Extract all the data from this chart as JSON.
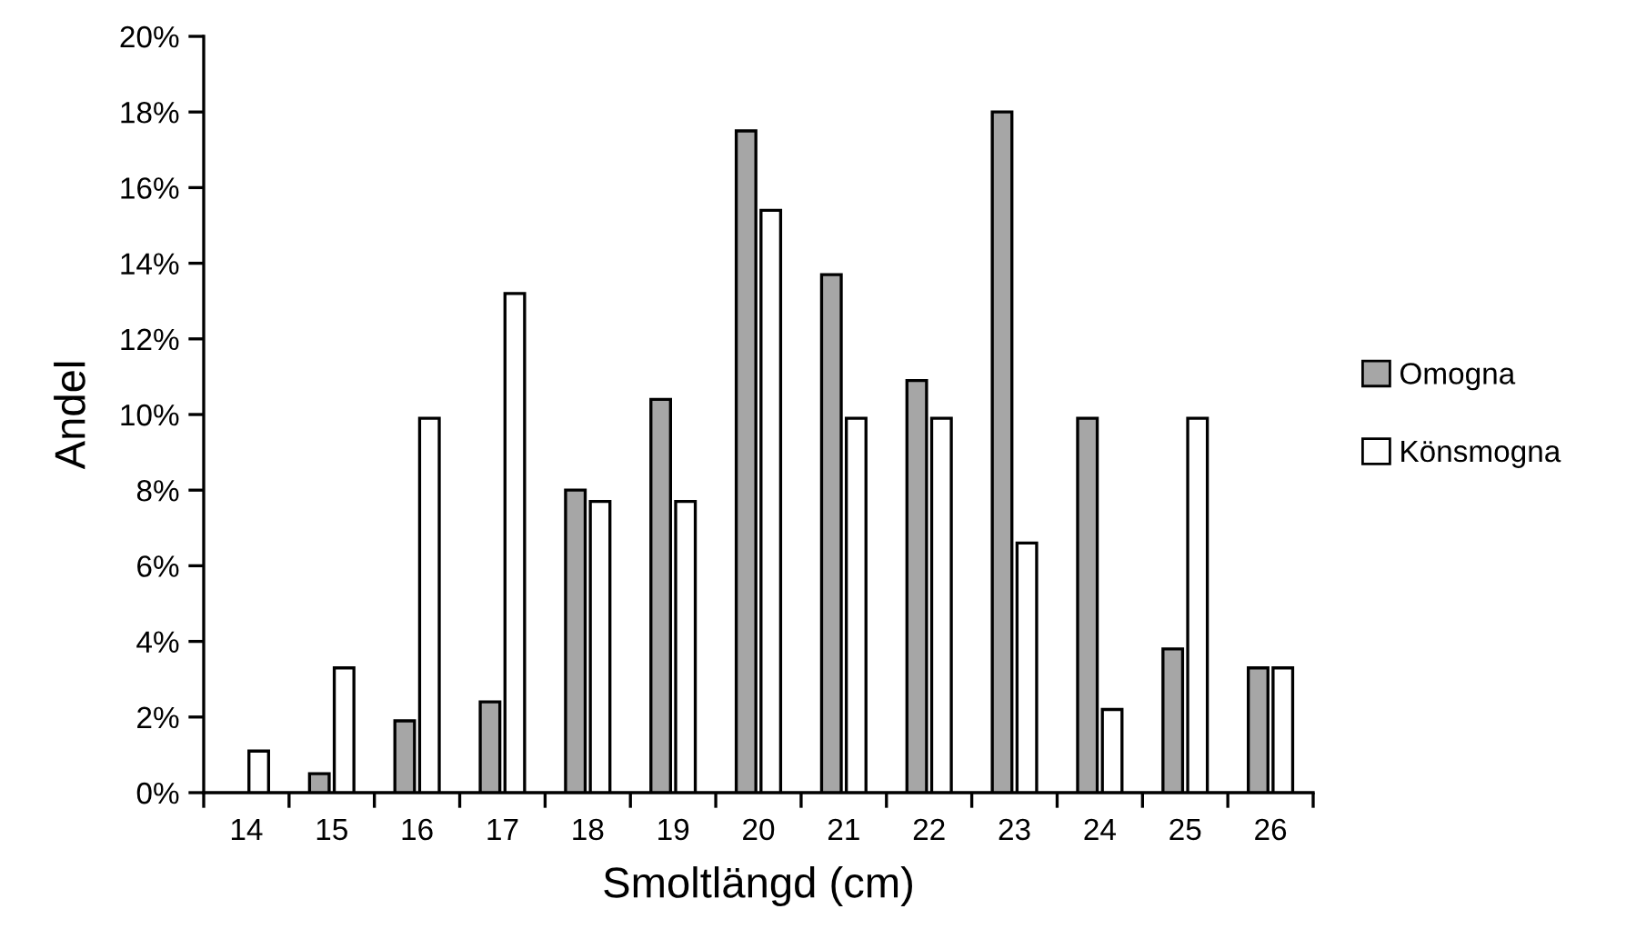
{
  "chart_data": {
    "type": "bar",
    "xlabel": "Smoltlängd (cm)",
    "ylabel": "Andel",
    "categories": [
      "14",
      "15",
      "16",
      "17",
      "18",
      "19",
      "20",
      "21",
      "22",
      "23",
      "24",
      "25",
      "26"
    ],
    "series": [
      {
        "name": "Omogna",
        "color": "#a6a6a6",
        "values": [
          0,
          0.5,
          1.9,
          2.4,
          8.0,
          10.4,
          17.5,
          13.7,
          10.9,
          18.0,
          9.9,
          3.8,
          3.3
        ]
      },
      {
        "name": "Könsmogna",
        "color": "#ffffff",
        "values": [
          1.1,
          3.3,
          9.9,
          13.2,
          7.7,
          7.7,
          15.4,
          9.9,
          9.9,
          6.6,
          2.2,
          9.9,
          3.3
        ]
      }
    ],
    "ylim": [
      0,
      20
    ],
    "yticks": [
      {
        "value": 0,
        "label": "0%"
      },
      {
        "value": 2,
        "label": "2%"
      },
      {
        "value": 4,
        "label": "4%"
      },
      {
        "value": 6,
        "label": "6%"
      },
      {
        "value": 8,
        "label": "8%"
      },
      {
        "value": 10,
        "label": "10%"
      },
      {
        "value": 12,
        "label": "12%"
      },
      {
        "value": 14,
        "label": "14%"
      },
      {
        "value": 16,
        "label": "16%"
      },
      {
        "value": 18,
        "label": "18%"
      },
      {
        "value": 20,
        "label": "20%"
      }
    ],
    "legend": "right",
    "grid": false
  }
}
